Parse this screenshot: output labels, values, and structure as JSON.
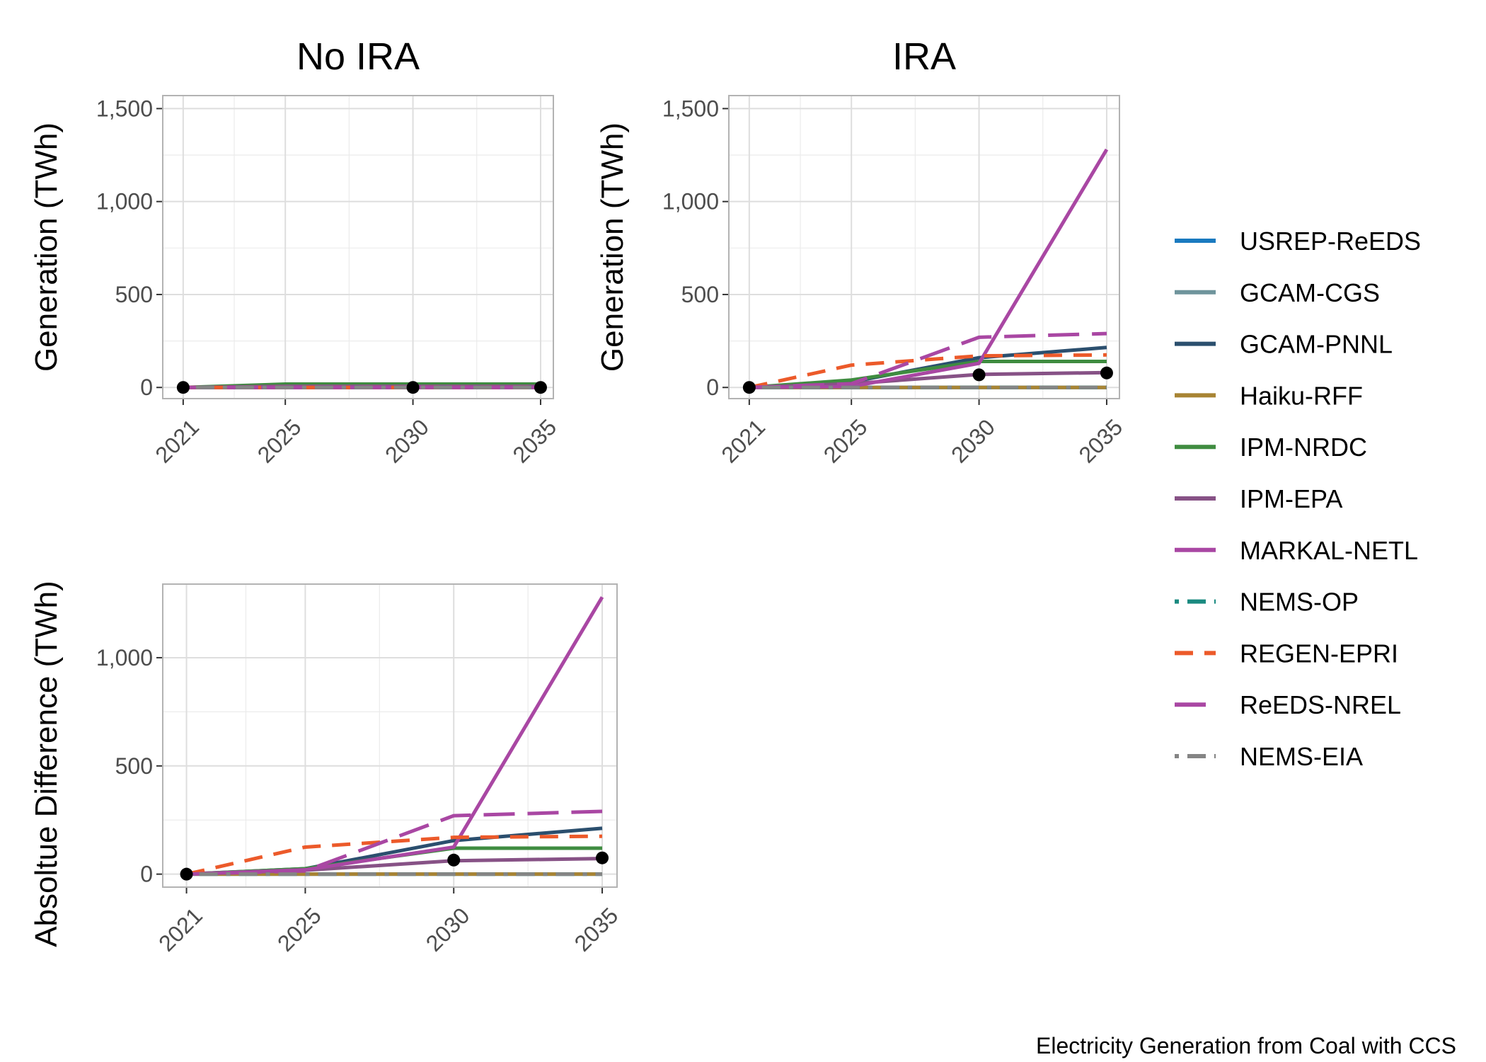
{
  "caption": "Electricity Generation from Coal with CCS",
  "legend": {
    "entries": [
      {
        "name": "USREP-ReEDS",
        "color": "#1a7abf",
        "dash": "solid"
      },
      {
        "name": "GCAM-CGS",
        "color": "#6f949c",
        "dash": "solid"
      },
      {
        "name": "GCAM-PNNL",
        "color": "#2b4f6e",
        "dash": "solid"
      },
      {
        "name": "Haiku-RFF",
        "color": "#a88434",
        "dash": "solid"
      },
      {
        "name": "IPM-NRDC",
        "color": "#3f8c40",
        "dash": "solid"
      },
      {
        "name": "IPM-EPA",
        "color": "#875286",
        "dash": "solid"
      },
      {
        "name": "MARKAL-NETL",
        "color": "#a947a3",
        "dash": "solid"
      },
      {
        "name": "NEMS-OP",
        "color": "#1a8a80",
        "dash": "dotdash"
      },
      {
        "name": "REGEN-EPRI",
        "color": "#ec5a2a",
        "dash": "dashed"
      },
      {
        "name": "ReEDS-NREL",
        "color": "#a947a3",
        "dash": "longdash"
      },
      {
        "name": "NEMS-EIA",
        "color": "#858585",
        "dash": "dotdash"
      }
    ]
  },
  "chart_data": [
    {
      "type": "line",
      "title": "No IRA",
      "xlabel": "",
      "ylabel": "Generation (TWh)",
      "x_ticks": [
        "2021",
        "2025",
        "2030",
        "2035"
      ],
      "y_ticks": [
        "0",
        "500",
        "1,000",
        "1,500"
      ],
      "xlim": [
        2020.2,
        2035.5
      ],
      "ylim": [
        -60,
        1570
      ],
      "grid": true,
      "series": [
        {
          "name": "USREP-ReEDS",
          "x": [
            2021,
            2025,
            2030,
            2035
          ],
          "y": [
            0,
            0,
            0,
            0
          ]
        },
        {
          "name": "GCAM-CGS",
          "x": [
            2021,
            2025,
            2030,
            2035
          ],
          "y": [
            0,
            0,
            0,
            0
          ]
        },
        {
          "name": "GCAM-PNNL",
          "x": [
            2021,
            2025,
            2030,
            2035
          ],
          "y": [
            0,
            10,
            10,
            10
          ]
        },
        {
          "name": "Haiku-RFF",
          "x": [
            2021,
            2025,
            2030,
            2035
          ],
          "y": [
            0,
            0,
            0,
            0
          ]
        },
        {
          "name": "IPM-NRDC",
          "x": [
            2021,
            2025,
            2030,
            2035
          ],
          "y": [
            0,
            18,
            18,
            18
          ]
        },
        {
          "name": "IPM-EPA",
          "x": [
            2021,
            2025,
            2030,
            2035
          ],
          "y": [
            0,
            6,
            6,
            6
          ]
        },
        {
          "name": "MARKAL-NETL",
          "x": [
            2021,
            2025,
            2030,
            2035
          ],
          "y": [
            0,
            0,
            0,
            0
          ]
        },
        {
          "name": "NEMS-OP",
          "x": [
            2021,
            2025,
            2030,
            2035
          ],
          "y": [
            0,
            0,
            0,
            0
          ]
        },
        {
          "name": "REGEN-EPRI",
          "x": [
            2021,
            2025,
            2030,
            2035
          ],
          "y": [
            0,
            0,
            0,
            0
          ]
        },
        {
          "name": "ReEDS-NREL",
          "x": [
            2021,
            2025,
            2030,
            2035
          ],
          "y": [
            0,
            0,
            0,
            0
          ]
        },
        {
          "name": "NEMS-EIA",
          "x": [
            2021,
            2025,
            2030,
            2035
          ],
          "y": [
            0,
            0,
            0,
            0
          ]
        }
      ],
      "points": [
        {
          "x": 2021,
          "y": 0
        },
        {
          "x": 2030,
          "y": 0
        },
        {
          "x": 2035,
          "y": 0
        }
      ]
    },
    {
      "type": "line",
      "title": "IRA",
      "xlabel": "",
      "ylabel": "Generation (TWh)",
      "x_ticks": [
        "2021",
        "2025",
        "2030",
        "2035"
      ],
      "y_ticks": [
        "0",
        "500",
        "1,000",
        "1,500"
      ],
      "xlim": [
        2020.2,
        2035.5
      ],
      "ylim": [
        -60,
        1570
      ],
      "grid": true,
      "series": [
        {
          "name": "USREP-ReEDS",
          "x": [
            2021,
            2025,
            2030,
            2035
          ],
          "y": [
            0,
            0,
            0,
            0
          ]
        },
        {
          "name": "GCAM-CGS",
          "x": [
            2021,
            2025,
            2030,
            2035
          ],
          "y": [
            0,
            0,
            0,
            0
          ]
        },
        {
          "name": "GCAM-PNNL",
          "x": [
            2021,
            2025,
            2030,
            2035
          ],
          "y": [
            0,
            30,
            160,
            215
          ]
        },
        {
          "name": "Haiku-RFF",
          "x": [
            2021,
            2025,
            2030,
            2035
          ],
          "y": [
            0,
            0,
            0,
            0
          ]
        },
        {
          "name": "IPM-NRDC",
          "x": [
            2021,
            2025,
            2030,
            2035
          ],
          "y": [
            0,
            40,
            140,
            140
          ]
        },
        {
          "name": "IPM-EPA",
          "x": [
            2021,
            2025,
            2030,
            2035
          ],
          "y": [
            0,
            20,
            70,
            80
          ]
        },
        {
          "name": "MARKAL-NETL",
          "x": [
            2021,
            2025,
            2030,
            2035
          ],
          "y": [
            0,
            5,
            130,
            1280
          ]
        },
        {
          "name": "NEMS-OP",
          "x": [
            2021,
            2025,
            2030,
            2035
          ],
          "y": [
            0,
            0,
            0,
            0
          ]
        },
        {
          "name": "REGEN-EPRI",
          "x": [
            2021,
            2025,
            2030,
            2035
          ],
          "y": [
            0,
            120,
            170,
            175
          ]
        },
        {
          "name": "ReEDS-NREL",
          "x": [
            2021,
            2025,
            2030,
            2035
          ],
          "y": [
            0,
            20,
            270,
            290
          ]
        },
        {
          "name": "NEMS-EIA",
          "x": [
            2021,
            2025,
            2030,
            2035
          ],
          "y": [
            0,
            0,
            0,
            0
          ]
        }
      ],
      "points": [
        {
          "x": 2021,
          "y": 0
        },
        {
          "x": 2030,
          "y": 68
        },
        {
          "x": 2035,
          "y": 78
        }
      ]
    },
    {
      "type": "line",
      "title": "",
      "xlabel": "",
      "ylabel": "Absoltue Difference (TWh)",
      "x_ticks": [
        "2021",
        "2025",
        "2030",
        "2035"
      ],
      "y_ticks": [
        "0",
        "500",
        "1,000"
      ],
      "xlim": [
        2020.2,
        2035.5
      ],
      "ylim": [
        -60,
        1340
      ],
      "grid": true,
      "series": [
        {
          "name": "USREP-ReEDS",
          "x": [
            2021,
            2025,
            2030,
            2035
          ],
          "y": [
            0,
            0,
            0,
            0
          ]
        },
        {
          "name": "GCAM-CGS",
          "x": [
            2021,
            2025,
            2030,
            2035
          ],
          "y": [
            0,
            0,
            0,
            0
          ]
        },
        {
          "name": "GCAM-PNNL",
          "x": [
            2021,
            2025,
            2030,
            2035
          ],
          "y": [
            0,
            25,
            155,
            212
          ]
        },
        {
          "name": "Haiku-RFF",
          "x": [
            2021,
            2025,
            2030,
            2035
          ],
          "y": [
            0,
            0,
            0,
            0
          ]
        },
        {
          "name": "IPM-NRDC",
          "x": [
            2021,
            2025,
            2030,
            2035
          ],
          "y": [
            0,
            25,
            120,
            120
          ]
        },
        {
          "name": "IPM-EPA",
          "x": [
            2021,
            2025,
            2030,
            2035
          ],
          "y": [
            0,
            18,
            62,
            72
          ]
        },
        {
          "name": "MARKAL-NETL",
          "x": [
            2021,
            2025,
            2030,
            2035
          ],
          "y": [
            0,
            20,
            125,
            1280
          ]
        },
        {
          "name": "NEMS-OP",
          "x": [
            2021,
            2025,
            2030,
            2035
          ],
          "y": [
            0,
            0,
            0,
            0
          ]
        },
        {
          "name": "REGEN-EPRI",
          "x": [
            2021,
            2025,
            2030,
            2035
          ],
          "y": [
            0,
            125,
            170,
            175
          ]
        },
        {
          "name": "ReEDS-NREL",
          "x": [
            2021,
            2025,
            2030,
            2035
          ],
          "y": [
            0,
            15,
            270,
            290
          ]
        },
        {
          "name": "NEMS-EIA",
          "x": [
            2021,
            2025,
            2030,
            2035
          ],
          "y": [
            0,
            0,
            0,
            0
          ]
        }
      ],
      "points": [
        {
          "x": 2021,
          "y": 0
        },
        {
          "x": 2030,
          "y": 65
        },
        {
          "x": 2035,
          "y": 75
        }
      ]
    }
  ]
}
